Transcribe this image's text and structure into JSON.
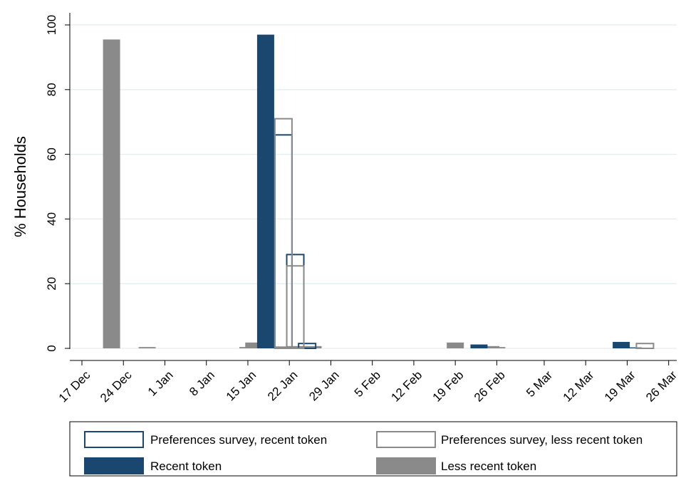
{
  "chart_data": {
    "type": "bar",
    "ylabel": "% Households",
    "xlabel": "",
    "ylim": [
      0,
      100
    ],
    "y_ticks": [
      0,
      20,
      40,
      60,
      80,
      100
    ],
    "x_range": [
      "2019-12-17",
      "2020-03-26"
    ],
    "x_ticks": [
      {
        "date": "2019-12-17",
        "label": "17 Dec"
      },
      {
        "date": "2019-12-24",
        "label": "24 Dec"
      },
      {
        "date": "2019-12-31",
        "label": "1 Jan"
      },
      {
        "date": "2020-01-07",
        "label": "8 Jan"
      },
      {
        "date": "2020-01-14",
        "label": "15 Jan"
      },
      {
        "date": "2020-01-21",
        "label": "22 Jan"
      },
      {
        "date": "2020-01-28",
        "label": "29 Jan"
      },
      {
        "date": "2020-02-04",
        "label": "5 Feb"
      },
      {
        "date": "2020-02-11",
        "label": "12 Feb"
      },
      {
        "date": "2020-02-18",
        "label": "19 Feb"
      },
      {
        "date": "2020-02-25",
        "label": "26 Feb"
      },
      {
        "date": "2020-03-04",
        "label": "5 Mar"
      },
      {
        "date": "2020-03-11",
        "label": "12 Mar"
      },
      {
        "date": "2020-03-18",
        "label": "19 Mar"
      },
      {
        "date": "2020-03-25",
        "label": "26 Mar"
      }
    ],
    "grid": true,
    "legend_position": "bottom",
    "series": [
      {
        "name": "Less recent token",
        "style": "filled",
        "color": "#8a8a8a",
        "points": [
          {
            "x": "2019-12-22",
            "y": 95.5
          },
          {
            "x": "2019-12-28",
            "y": 0.4
          },
          {
            "x": "2020-01-14",
            "y": 0.4
          },
          {
            "x": "2020-01-15",
            "y": 1.8
          },
          {
            "x": "2020-01-19",
            "y": 0.6
          },
          {
            "x": "2020-01-22",
            "y": 0.7
          },
          {
            "x": "2020-01-25",
            "y": 0.7
          },
          {
            "x": "2020-02-18",
            "y": 1.8
          },
          {
            "x": "2020-02-24",
            "y": 0.7
          },
          {
            "x": "2020-02-25",
            "y": 0.4
          }
        ]
      },
      {
        "name": "Recent token",
        "style": "filled",
        "color": "#1a476f",
        "points": [
          {
            "x": "2020-01-17",
            "y": 97
          },
          {
            "x": "2020-02-22",
            "y": 1.2
          },
          {
            "x": "2020-03-17",
            "y": 2.0
          },
          {
            "x": "2020-03-19",
            "y": 0.3
          }
        ]
      },
      {
        "name": "Preferences survey, recent token",
        "style": "outline",
        "color": "#1a476f",
        "points": [
          {
            "x": "2020-01-20",
            "y": 66
          },
          {
            "x": "2020-01-22",
            "y": 29
          },
          {
            "x": "2020-01-24",
            "y": 1.5
          }
        ]
      },
      {
        "name": "Preferences survey, less recent token",
        "style": "outline",
        "color": "#8a8a8a",
        "points": [
          {
            "x": "2020-01-20",
            "y": 71
          },
          {
            "x": "2020-01-22",
            "y": 25.5
          },
          {
            "x": "2020-03-21",
            "y": 1.5
          }
        ]
      }
    ],
    "legend": [
      "Preferences survey, recent token",
      "Preferences survey, less recent token",
      "Recent token",
      "Less recent token"
    ]
  }
}
